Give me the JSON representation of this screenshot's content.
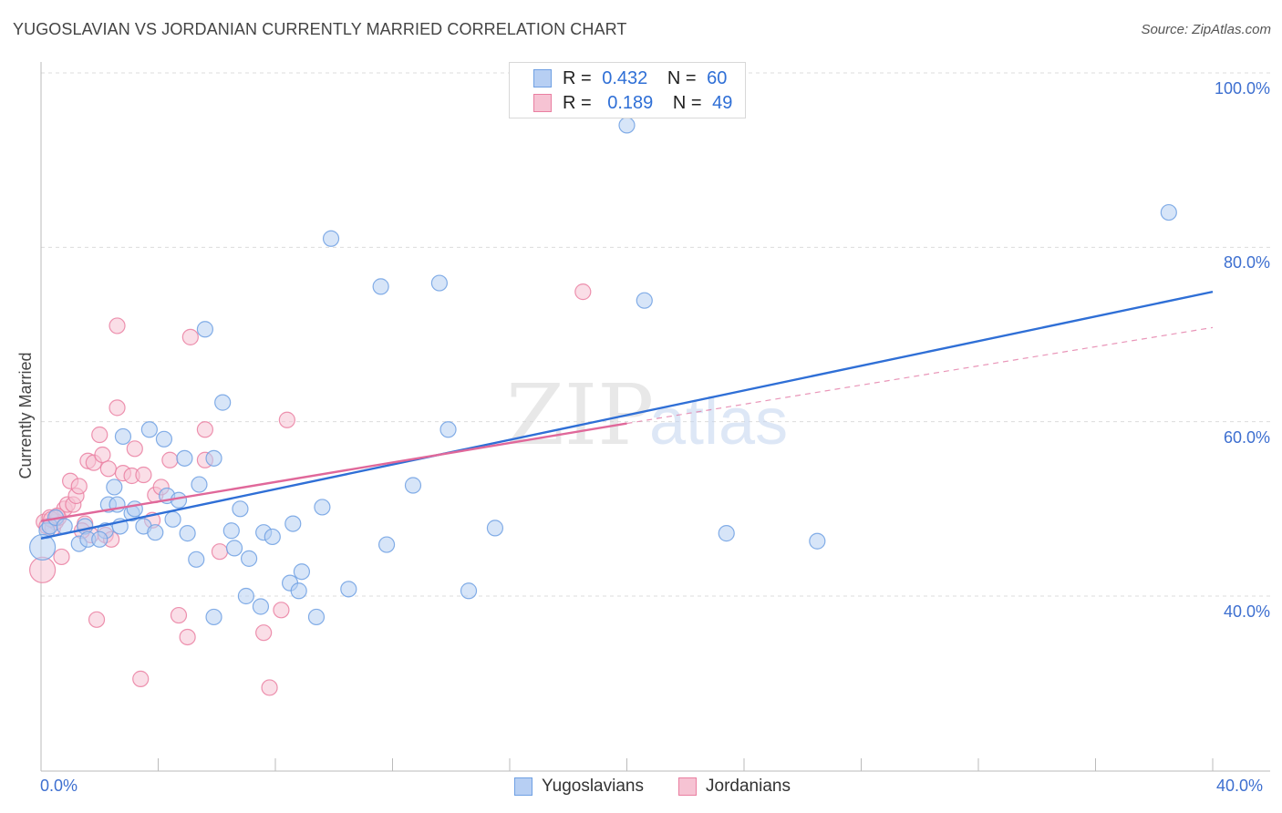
{
  "title": "YUGOSLAVIAN VS JORDANIAN CURRENTLY MARRIED CORRELATION CHART",
  "source": "Source: ZipAtlas.com",
  "watermark": "ZIPatlas",
  "colors": {
    "blue": "#6fa0e3",
    "blue_fill": "#b7cff3",
    "blue_line": "#2f6fd6",
    "pink": "#ea7fa1",
    "pink_fill": "#f6c3d3",
    "pink_line": "#e0689a",
    "axis_label": "#3d6fd0"
  },
  "legend_top": {
    "rows": [
      {
        "r_label": "R =",
        "r_value": "0.432",
        "n_label": "N =",
        "n_value": "60"
      },
      {
        "r_label": "R =",
        "r_value": "0.189",
        "n_label": "N =",
        "n_value": "49"
      }
    ]
  },
  "legend_bottom": [
    {
      "label": "Yugoslavians"
    },
    {
      "label": "Jordanians"
    }
  ],
  "chart_data": {
    "type": "scatter",
    "title": "YUGOSLAVIAN VS JORDANIAN CURRENTLY MARRIED CORRELATION CHART",
    "xlabel": "",
    "ylabel": "Currently Married",
    "xlim": [
      0,
      40
    ],
    "ylim": [
      20,
      102
    ],
    "x_tick_labels": [
      "0.0%",
      "40.0%"
    ],
    "y_tick_labels": [
      "40.0%",
      "60.0%",
      "80.0%",
      "100.0%"
    ],
    "y_ticks": [
      40,
      60,
      80,
      100
    ],
    "grid": true,
    "series": [
      {
        "name": "Yugoslavians",
        "R": 0.432,
        "N": 60,
        "trend": {
          "x": [
            0,
            40
          ],
          "y": [
            46.6,
            74.9
          ]
        },
        "points": [
          [
            0.2,
            47.5
          ],
          [
            0.3,
            48.0
          ],
          [
            0.5,
            49.0
          ],
          [
            0.8,
            48.0
          ],
          [
            1.3,
            46.0
          ],
          [
            1.5,
            48.0
          ],
          [
            1.6,
            46.5
          ],
          [
            2.2,
            47.5
          ],
          [
            2.0,
            46.5
          ],
          [
            2.3,
            50.5
          ],
          [
            2.5,
            52.5
          ],
          [
            2.6,
            50.5
          ],
          [
            2.7,
            48.0
          ],
          [
            2.8,
            58.3
          ],
          [
            3.1,
            49.5
          ],
          [
            3.2,
            50.0
          ],
          [
            3.5,
            48.0
          ],
          [
            3.7,
            59.1
          ],
          [
            3.9,
            47.3
          ],
          [
            4.2,
            58.0
          ],
          [
            4.3,
            51.5
          ],
          [
            4.5,
            48.8
          ],
          [
            4.7,
            51.0
          ],
          [
            4.9,
            55.8
          ],
          [
            5.0,
            47.2
          ],
          [
            5.3,
            44.2
          ],
          [
            5.4,
            52.8
          ],
          [
            5.6,
            70.6
          ],
          [
            5.9,
            55.8
          ],
          [
            5.9,
            37.6
          ],
          [
            6.2,
            62.2
          ],
          [
            6.5,
            47.5
          ],
          [
            6.6,
            45.5
          ],
          [
            6.8,
            50.0
          ],
          [
            7.0,
            40.0
          ],
          [
            7.1,
            44.3
          ],
          [
            7.5,
            38.8
          ],
          [
            7.6,
            47.3
          ],
          [
            7.9,
            46.8
          ],
          [
            8.5,
            41.5
          ],
          [
            8.6,
            48.3
          ],
          [
            8.8,
            40.6
          ],
          [
            8.9,
            42.8
          ],
          [
            9.4,
            37.6
          ],
          [
            9.6,
            50.2
          ],
          [
            9.9,
            81.0
          ],
          [
            10.5,
            40.8
          ],
          [
            11.6,
            75.5
          ],
          [
            11.8,
            45.9
          ],
          [
            12.7,
            52.7
          ],
          [
            13.6,
            75.9
          ],
          [
            13.9,
            59.1
          ],
          [
            14.6,
            40.6
          ],
          [
            15.5,
            47.8
          ],
          [
            20.0,
            94.0
          ],
          [
            20.6,
            73.9
          ],
          [
            23.4,
            47.2
          ],
          [
            26.5,
            46.3
          ],
          [
            38.5,
            84.0
          ],
          [
            0.05,
            45.6
          ]
        ]
      },
      {
        "name": "Jordanians",
        "R": 0.189,
        "N": 49,
        "trend": {
          "x": [
            0,
            20
          ],
          "y": [
            48.6,
            59.8
          ]
        },
        "trend_dashed": {
          "x": [
            20,
            40
          ],
          "y": [
            59.8,
            70.8
          ]
        },
        "points": [
          [
            0.1,
            48.5
          ],
          [
            0.2,
            48.0
          ],
          [
            0.3,
            49.0
          ],
          [
            0.4,
            47.8
          ],
          [
            0.5,
            48.5
          ],
          [
            0.6,
            49.0
          ],
          [
            0.7,
            44.5
          ],
          [
            0.8,
            50.0
          ],
          [
            0.9,
            50.5
          ],
          [
            1.0,
            53.2
          ],
          [
            1.1,
            50.5
          ],
          [
            1.2,
            51.5
          ],
          [
            1.3,
            52.6
          ],
          [
            1.5,
            48.3
          ],
          [
            1.6,
            55.5
          ],
          [
            1.7,
            47.0
          ],
          [
            1.8,
            55.3
          ],
          [
            1.9,
            37.3
          ],
          [
            2.0,
            58.5
          ],
          [
            2.1,
            56.2
          ],
          [
            2.2,
            47.0
          ],
          [
            2.3,
            54.6
          ],
          [
            2.4,
            46.5
          ],
          [
            2.6,
            61.6
          ],
          [
            2.6,
            71.0
          ],
          [
            2.8,
            54.1
          ],
          [
            3.1,
            53.8
          ],
          [
            3.2,
            56.9
          ],
          [
            3.4,
            30.5
          ],
          [
            3.5,
            53.9
          ],
          [
            3.8,
            48.7
          ],
          [
            3.9,
            51.6
          ],
          [
            4.1,
            52.5
          ],
          [
            4.4,
            55.6
          ],
          [
            4.7,
            37.8
          ],
          [
            5.0,
            35.3
          ],
          [
            5.1,
            69.7
          ],
          [
            5.6,
            59.1
          ],
          [
            5.6,
            55.6
          ],
          [
            6.1,
            45.1
          ],
          [
            7.6,
            35.8
          ],
          [
            7.8,
            29.5
          ],
          [
            8.2,
            38.4
          ],
          [
            8.4,
            60.2
          ],
          [
            0.05,
            43.0
          ],
          [
            18.5,
            74.9
          ],
          [
            1.4,
            47.5
          ],
          [
            0.35,
            48.8
          ],
          [
            0.55,
            49.2
          ]
        ]
      }
    ]
  }
}
